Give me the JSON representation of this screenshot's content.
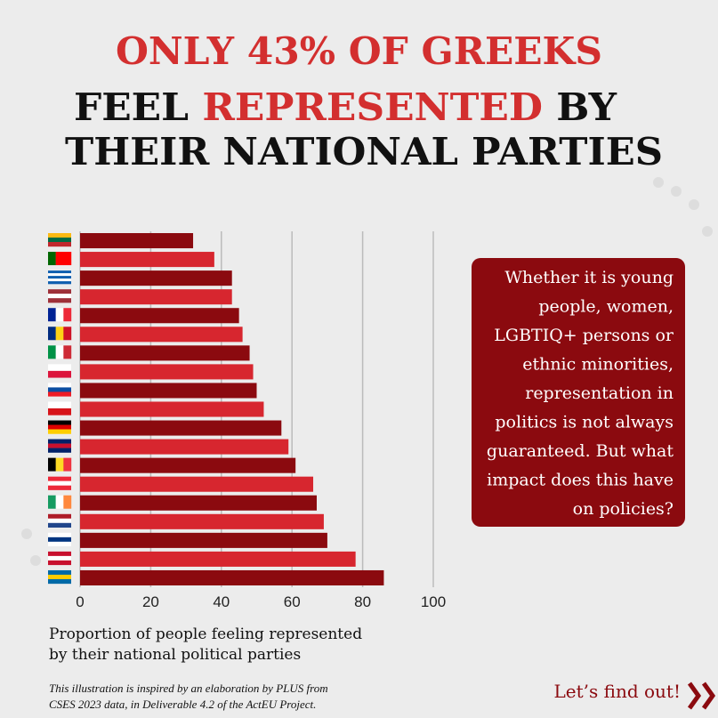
{
  "chart_data": {
    "type": "bar",
    "orientation": "horizontal",
    "title_lines": [
      [
        {
          "text": "ONLY 43% OF GREEKS",
          "color": "#d32f2f"
        }
      ],
      [
        {
          "text": "FEEL ",
          "color": "#111111"
        },
        {
          "text": "REPRESENTED",
          "color": "#d32f2f"
        },
        {
          "text": " BY",
          "color": "#111111"
        }
      ],
      [
        {
          "text": "THEIR NATIONAL PARTIES",
          "color": "#111111"
        }
      ]
    ],
    "categories": [
      null,
      null,
      null,
      null,
      null,
      null,
      null,
      null,
      null,
      null,
      null,
      null,
      null,
      null,
      null,
      null,
      null,
      null,
      null
    ],
    "values": [
      32,
      38,
      43,
      43,
      45,
      46,
      48,
      49,
      50,
      52,
      57,
      59,
      61,
      66,
      67,
      69,
      70,
      78,
      86
    ],
    "colors": [
      "#8b0a0f",
      "#d7262f"
    ],
    "xlim": [
      0,
      100
    ],
    "xticks": [
      0,
      20,
      40,
      60,
      80,
      100
    ],
    "grid": true,
    "x_label_lines": [
      "Proportion of people feeling represented",
      "by their national political parties"
    ],
    "callout_lines": [
      "Whether it is young",
      "people, women,",
      "LGBTIQ+ persons or",
      "ethnic minorities,",
      "representation in",
      "politics is not always",
      "guaranteed. But what",
      "impact does this have",
      "on policies?"
    ],
    "footnote_lines": [
      "This illustration is inspired by an elaboration by PLUS from",
      "CSES 2023 data, in Deliverable 4.2 of the ActEU Project."
    ],
    "cta": "Let’s find out!"
  }
}
